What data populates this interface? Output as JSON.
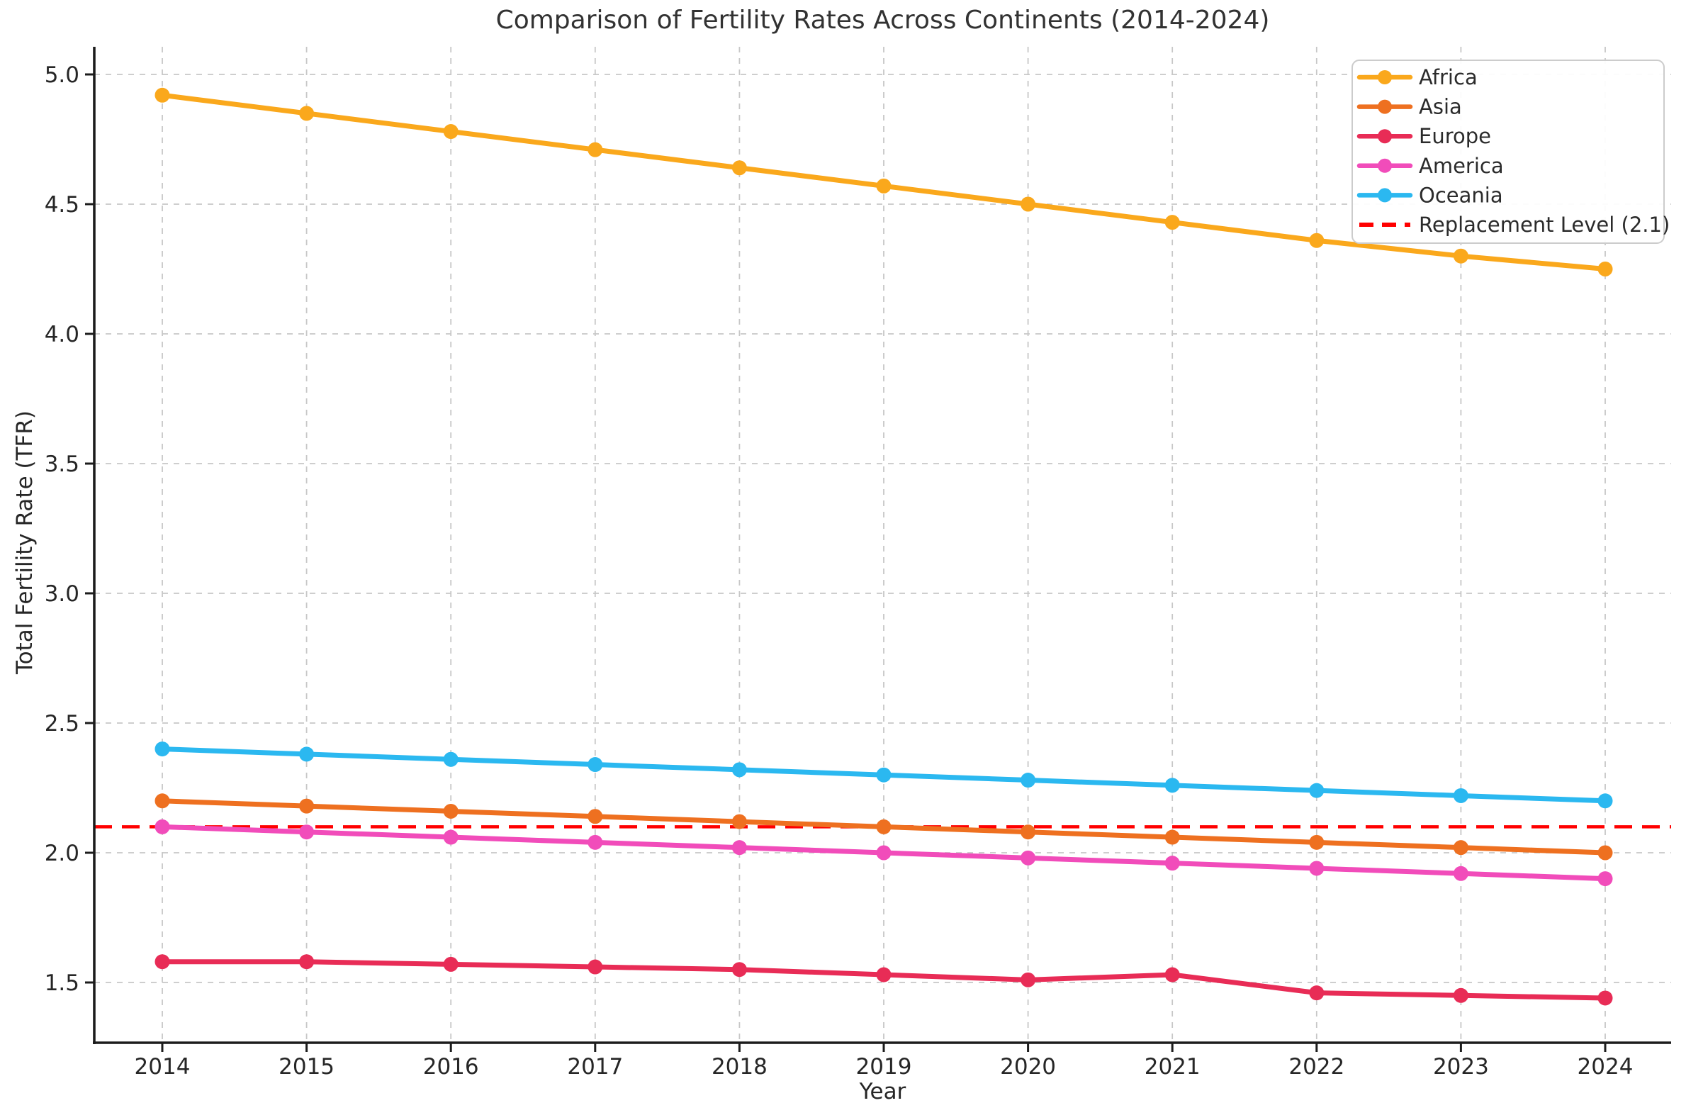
{
  "chart_data": {
    "type": "line",
    "title": "Comparison of Fertility Rates Across Continents (2014-2024)",
    "xlabel": "Year",
    "ylabel": "Total Fertility Rate (TFR)",
    "x": [
      2014,
      2015,
      2016,
      2017,
      2018,
      2019,
      2020,
      2021,
      2022,
      2023,
      2024
    ],
    "x_tick_labels": [
      "2014",
      "2015",
      "2016",
      "2017",
      "2018",
      "2019",
      "2020",
      "2021",
      "2022",
      "2023",
      "2024"
    ],
    "y_ticks": [
      {
        "label": "5.0",
        "value": 5.0
      },
      {
        "label": "4.5",
        "value": 4.5
      },
      {
        "label": "4.0",
        "value": 4.0
      },
      {
        "label": "3.5",
        "value": 3.5
      },
      {
        "label": "3.0",
        "value": 3.0
      },
      {
        "label": "2.5",
        "value": 2.5
      },
      {
        "label": "2.0",
        "value": 2.0
      },
      {
        "label": "1.5",
        "value": 1.5
      }
    ],
    "xlim": [
      2013.5,
      2024.5
    ],
    "ylim": [
      1.27,
      5.11
    ],
    "grid": "dashed-on",
    "legend_position": "upper right",
    "series": [
      {
        "name": "Africa",
        "color": "#FAA81C",
        "values": [
          4.92,
          4.85,
          4.78,
          4.71,
          4.64,
          4.57,
          4.5,
          4.43,
          4.36,
          4.3,
          4.25
        ]
      },
      {
        "name": "Asia",
        "color": "#EE7020",
        "values": [
          2.2,
          2.18,
          2.16,
          2.14,
          2.12,
          2.1,
          2.08,
          2.06,
          2.04,
          2.02,
          2.0
        ]
      },
      {
        "name": "Europe",
        "color": "#E82C56",
        "values": [
          1.58,
          1.58,
          1.57,
          1.56,
          1.55,
          1.53,
          1.51,
          1.53,
          1.46,
          1.45,
          1.44
        ]
      },
      {
        "name": "America",
        "color": "#F14CBA",
        "values": [
          2.1,
          2.08,
          2.06,
          2.04,
          2.02,
          2.0,
          1.98,
          1.96,
          1.94,
          1.92,
          1.9
        ]
      },
      {
        "name": "Oceania",
        "color": "#2BB8F0",
        "values": [
          2.4,
          2.38,
          2.36,
          2.34,
          2.32,
          2.3,
          2.28,
          2.26,
          2.24,
          2.22,
          2.2
        ]
      }
    ],
    "reference_line": {
      "label": "Replacement Level (2.1)",
      "value": 2.1,
      "color": "#FF0000",
      "style": "dashed"
    },
    "legend": {
      "items": [
        {
          "label": "Africa",
          "color": "#FAA81C",
          "style": "line-marker"
        },
        {
          "label": "Asia",
          "color": "#EE7020",
          "style": "line-marker"
        },
        {
          "label": "Europe",
          "color": "#E82C56",
          "style": "line-marker"
        },
        {
          "label": "America",
          "color": "#F14CBA",
          "style": "line-marker"
        },
        {
          "label": "Oceania",
          "color": "#2BB8F0",
          "style": "line-marker"
        },
        {
          "label": "Replacement Level (2.1)",
          "color": "#FF0000",
          "style": "dashed"
        }
      ]
    }
  }
}
